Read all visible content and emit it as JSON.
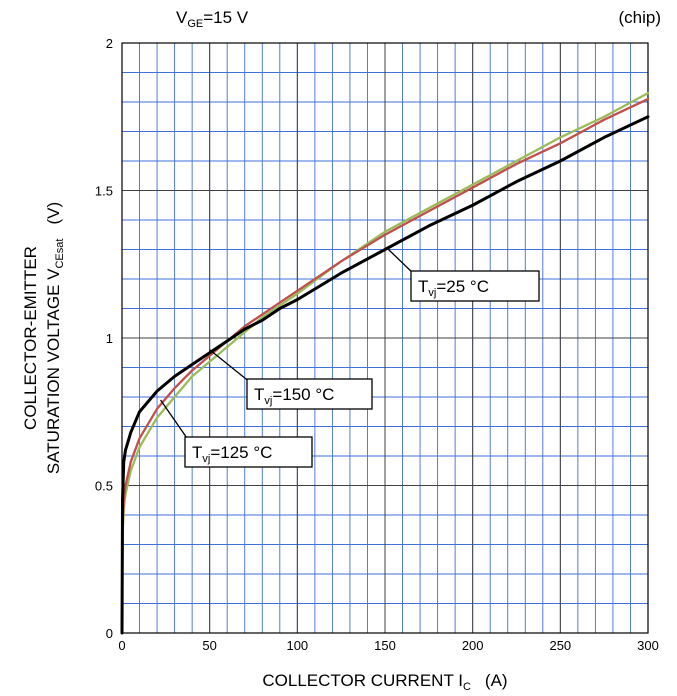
{
  "header": {
    "condition_main": "V",
    "condition_sub": "GE",
    "condition_rest": "=15 V",
    "note": "(chip)"
  },
  "chart_data": {
    "type": "line",
    "xlabel": {
      "main": "COLLECTOR CURRENT   I",
      "sub": "C",
      "unit": "(A)"
    },
    "ylabel": {
      "line1": "COLLECTOR-EMITTER",
      "line2_main": "SATURATION VOLTAGE   V",
      "line2_sub": "CEsat",
      "unit": "(V)"
    },
    "xlim": [
      0,
      300
    ],
    "ylim": [
      0,
      2
    ],
    "x_ticks": [
      0,
      50,
      100,
      150,
      200,
      250,
      300
    ],
    "x_tick_labels": [
      "0",
      "50",
      "100",
      "150",
      "200",
      "250",
      "300"
    ],
    "y_ticks": [
      0,
      0.5,
      1,
      1.5,
      2
    ],
    "y_tick_labels": [
      "0",
      "0.5",
      "1",
      "1.5",
      "2"
    ],
    "grid": true,
    "minor_grid": {
      "x_step": 10,
      "y_step": 0.1
    },
    "series": [
      {
        "name": "T_vj=25 °C",
        "color": "#000000",
        "x": [
          0,
          0.3,
          1,
          2,
          5,
          10,
          20,
          30,
          40,
          50,
          60,
          70,
          80,
          90,
          100,
          125,
          150,
          175,
          200,
          225,
          250,
          275,
          300
        ],
        "y": [
          0,
          0.45,
          0.58,
          0.62,
          0.68,
          0.75,
          0.82,
          0.87,
          0.91,
          0.95,
          0.99,
          1.03,
          1.06,
          1.1,
          1.13,
          1.22,
          1.3,
          1.38,
          1.45,
          1.53,
          1.6,
          1.68,
          1.75
        ]
      },
      {
        "name": "T_vj=125 °C",
        "color": "#c0504d",
        "x": [
          0,
          0.3,
          1,
          2,
          5,
          10,
          20,
          30,
          40,
          50,
          60,
          70,
          80,
          90,
          100,
          125,
          150,
          175,
          200,
          225,
          250,
          275,
          300
        ],
        "y": [
          0,
          0.35,
          0.45,
          0.5,
          0.58,
          0.66,
          0.76,
          0.83,
          0.89,
          0.94,
          0.99,
          1.04,
          1.08,
          1.12,
          1.16,
          1.26,
          1.35,
          1.43,
          1.51,
          1.59,
          1.66,
          1.74,
          1.81
        ]
      },
      {
        "name": "T_vj=150 °C",
        "color": "#9bbb59",
        "x": [
          0,
          0.3,
          1,
          2,
          5,
          10,
          20,
          30,
          40,
          50,
          60,
          70,
          80,
          90,
          100,
          125,
          150,
          175,
          200,
          225,
          250,
          275,
          300
        ],
        "y": [
          0,
          0.33,
          0.42,
          0.47,
          0.55,
          0.63,
          0.73,
          0.8,
          0.87,
          0.92,
          0.97,
          1.02,
          1.07,
          1.11,
          1.15,
          1.26,
          1.36,
          1.44,
          1.52,
          1.6,
          1.68,
          1.75,
          1.83
        ]
      }
    ],
    "callouts": [
      {
        "label_main": "T",
        "label_sub": "vj",
        "label_rest": "=25 °C",
        "x": 152,
        "y": 1.3
      },
      {
        "label_main": "T",
        "label_sub": "vj",
        "label_rest": "=150 °C",
        "x": 50,
        "y": 0.96
      },
      {
        "label_main": "T",
        "label_sub": "vj",
        "label_rest": "=125 °C",
        "x": 22,
        "y": 0.79
      }
    ]
  }
}
